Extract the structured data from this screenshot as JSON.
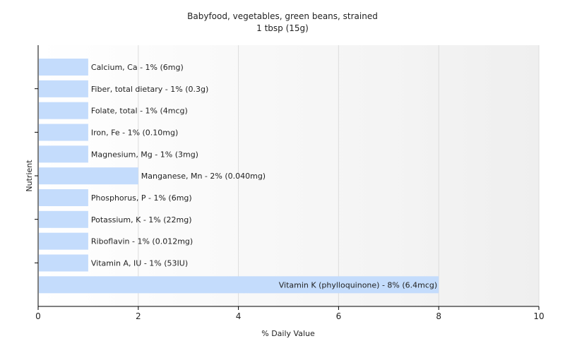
{
  "chart_data": {
    "type": "bar",
    "orientation": "horizontal",
    "title": "Babyfood, vegetables, green beans, strained",
    "subtitle": "1 tbsp (15g)",
    "xlabel": "% Daily Value",
    "ylabel": "Nutrient",
    "xlim": [
      0,
      10
    ],
    "xticks": [
      "0",
      "2",
      "4",
      "6",
      "8",
      "10"
    ],
    "grid": true,
    "bar_color": "#c4dcfc",
    "categories": [
      "Calcium, Ca",
      "Fiber, total dietary",
      "Folate, total",
      "Iron, Fe",
      "Magnesium, Mg",
      "Manganese, Mn",
      "Phosphorus, P",
      "Potassium, K",
      "Riboflavin",
      "Vitamin A, IU",
      "Vitamin K (phylloquinone)"
    ],
    "values": [
      1,
      1,
      1,
      1,
      1,
      2,
      1,
      1,
      1,
      1,
      8
    ],
    "labels": [
      "Calcium, Ca - 1% (6mg)",
      "Fiber, total dietary - 1% (0.3g)",
      "Folate, total - 1% (4mcg)",
      "Iron, Fe - 1% (0.10mg)",
      "Magnesium, Mg - 1% (3mg)",
      "Manganese, Mn - 2% (0.040mg)",
      "Phosphorus, P - 1% (6mg)",
      "Potassium, K - 1% (22mg)",
      "Riboflavin - 1% (0.012mg)",
      "Vitamin A, IU - 1% (53IU)",
      "Vitamin K (phylloquinone) - 8% (6.4mcg)"
    ]
  }
}
